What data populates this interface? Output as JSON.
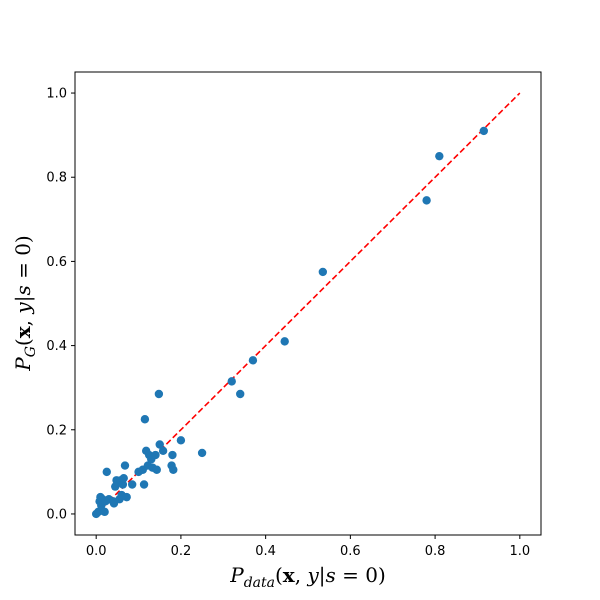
{
  "chart_data": {
    "type": "scatter",
    "xlabel": "P_data(x, y|s = 0)",
    "ylabel": "P_G(x, y|s = 0)",
    "xlim": [
      -0.05,
      1.05
    ],
    "ylim": [
      -0.05,
      1.05
    ],
    "xticks": [
      "0.0",
      "0.2",
      "0.4",
      "0.6",
      "0.8",
      "1.0"
    ],
    "yticks": [
      "0.0",
      "0.2",
      "0.4",
      "0.6",
      "0.8",
      "1.0"
    ],
    "grid": false,
    "point_color": "#1f77b4",
    "reference_line": {
      "x": [
        0,
        1
      ],
      "y": [
        0,
        1
      ],
      "color": "#ff0000",
      "style": "dashed"
    },
    "points": [
      {
        "x": 0.0,
        "y": 0.0
      },
      {
        "x": 0.005,
        "y": 0.005
      },
      {
        "x": 0.008,
        "y": 0.03
      },
      {
        "x": 0.01,
        "y": 0.04
      },
      {
        "x": 0.012,
        "y": 0.02
      },
      {
        "x": 0.015,
        "y": 0.035
      },
      {
        "x": 0.02,
        "y": 0.005
      },
      {
        "x": 0.022,
        "y": 0.03
      },
      {
        "x": 0.025,
        "y": 0.1
      },
      {
        "x": 0.03,
        "y": 0.035
      },
      {
        "x": 0.04,
        "y": 0.03
      },
      {
        "x": 0.042,
        "y": 0.025
      },
      {
        "x": 0.045,
        "y": 0.065
      },
      {
        "x": 0.048,
        "y": 0.08
      },
      {
        "x": 0.05,
        "y": 0.075
      },
      {
        "x": 0.055,
        "y": 0.035
      },
      {
        "x": 0.058,
        "y": 0.08
      },
      {
        "x": 0.06,
        "y": 0.045
      },
      {
        "x": 0.063,
        "y": 0.07
      },
      {
        "x": 0.065,
        "y": 0.085
      },
      {
        "x": 0.068,
        "y": 0.115
      },
      {
        "x": 0.072,
        "y": 0.04
      },
      {
        "x": 0.085,
        "y": 0.07
      },
      {
        "x": 0.1,
        "y": 0.1
      },
      {
        "x": 0.11,
        "y": 0.105
      },
      {
        "x": 0.113,
        "y": 0.07
      },
      {
        "x": 0.115,
        "y": 0.225
      },
      {
        "x": 0.118,
        "y": 0.15
      },
      {
        "x": 0.122,
        "y": 0.115
      },
      {
        "x": 0.125,
        "y": 0.14
      },
      {
        "x": 0.13,
        "y": 0.13
      },
      {
        "x": 0.133,
        "y": 0.11
      },
      {
        "x": 0.14,
        "y": 0.14
      },
      {
        "x": 0.143,
        "y": 0.105
      },
      {
        "x": 0.148,
        "y": 0.285
      },
      {
        "x": 0.15,
        "y": 0.165
      },
      {
        "x": 0.158,
        "y": 0.15
      },
      {
        "x": 0.178,
        "y": 0.115
      },
      {
        "x": 0.18,
        "y": 0.14
      },
      {
        "x": 0.182,
        "y": 0.105
      },
      {
        "x": 0.2,
        "y": 0.175
      },
      {
        "x": 0.25,
        "y": 0.145
      },
      {
        "x": 0.32,
        "y": 0.315
      },
      {
        "x": 0.34,
        "y": 0.285
      },
      {
        "x": 0.37,
        "y": 0.365
      },
      {
        "x": 0.445,
        "y": 0.41
      },
      {
        "x": 0.535,
        "y": 0.575
      },
      {
        "x": 0.78,
        "y": 0.745
      },
      {
        "x": 0.81,
        "y": 0.85
      },
      {
        "x": 0.915,
        "y": 0.91
      }
    ]
  }
}
